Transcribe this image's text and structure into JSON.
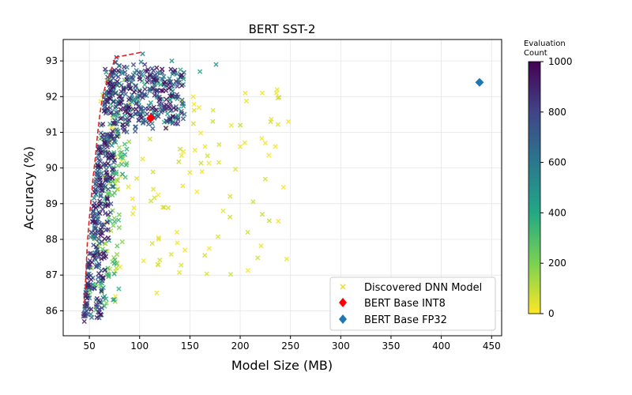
{
  "chart_data": {
    "type": "scatter",
    "title": "BERT SST-2",
    "xlabel": "Model Size (MB)",
    "ylabel": "Accuracy (%)",
    "xlim": [
      24,
      460
    ],
    "ylim": [
      85.3,
      93.6
    ],
    "xticks": [
      50,
      100,
      150,
      200,
      250,
      300,
      350,
      400,
      450
    ],
    "yticks": [
      86,
      87,
      88,
      89,
      90,
      91,
      92,
      93
    ],
    "grid": true,
    "legend_position": "bottom-right",
    "colorbar": {
      "label_line1": "Evaluation",
      "label_line2": "Count",
      "min": 0,
      "max": 1000,
      "ticks": [
        0,
        200,
        400,
        600,
        800,
        1000
      ],
      "colormap": "viridis"
    },
    "series": [
      {
        "name": "Discovered DNN Model",
        "marker": "x",
        "note_color_by": "evaluation count",
        "points_sample": [
          [
            45,
            85.7,
            900
          ],
          [
            46,
            86.2,
            900
          ],
          [
            47,
            86.5,
            850
          ],
          [
            48,
            87.0,
            800
          ],
          [
            50,
            87.6,
            800
          ],
          [
            52,
            88.2,
            780
          ],
          [
            54,
            88.8,
            760
          ],
          [
            56,
            89.4,
            740
          ],
          [
            58,
            90.0,
            720
          ],
          [
            60,
            90.6,
            700
          ],
          [
            62,
            91.2,
            700
          ],
          [
            65,
            91.7,
            680
          ],
          [
            68,
            92.1,
            700
          ],
          [
            72,
            92.6,
            750
          ],
          [
            77,
            93.1,
            780
          ],
          [
            103,
            93.2,
            600
          ],
          [
            132,
            93.0,
            500
          ],
          [
            160,
            92.7,
            400
          ],
          [
            176,
            92.9,
            500
          ],
          [
            183,
            88.8,
            30
          ],
          [
            205,
            92.1,
            20
          ],
          [
            222,
            92.1,
            20
          ],
          [
            236,
            92.1,
            20
          ],
          [
            248,
            91.3,
            20
          ],
          [
            235,
            90.6,
            20
          ],
          [
            225,
            90.7,
            20
          ],
          [
            200,
            90.6,
            20
          ],
          [
            165,
            90.6,
            20
          ],
          [
            155,
            90.5,
            20
          ],
          [
            162,
            89.9,
            20
          ],
          [
            143,
            89.5,
            20
          ],
          [
            123,
            88.9,
            20
          ],
          [
            137,
            88.2,
            20
          ],
          [
            145,
            87.7,
            20
          ],
          [
            104,
            87.4,
            20
          ],
          [
            118,
            87.3,
            20
          ],
          [
            117,
            86.5,
            20
          ],
          [
            76,
            86.4,
            20
          ],
          [
            119,
            88.0,
            20
          ]
        ]
      },
      {
        "name": "BERT Base INT8",
        "marker": "diamond",
        "color": "#ff0000",
        "x": 111,
        "y": 91.4
      },
      {
        "name": "BERT Base FP32",
        "marker": "diamond",
        "color": "#1f77b4",
        "x": 438,
        "y": 92.4
      }
    ],
    "pareto_front": {
      "color": "#d62728",
      "style": "dashed",
      "x": [
        45,
        46,
        47,
        48,
        50,
        52,
        54,
        56,
        58,
        60,
        62,
        64,
        67,
        71,
        76,
        103
      ],
      "y": [
        86.2,
        86.6,
        87.3,
        87.9,
        88.6,
        89.2,
        89.8,
        90.3,
        90.9,
        91.4,
        91.8,
        92.1,
        92.4,
        92.7,
        93.1,
        93.25
      ]
    }
  }
}
